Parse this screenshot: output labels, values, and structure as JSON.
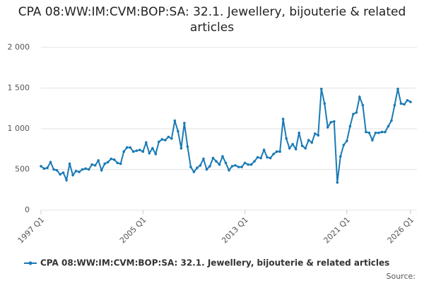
{
  "chart_data": {
    "type": "line",
    "title": "CPA 08:WW:IM:CVM:BOP:SA: 32.1. Jewellery, bijouterie & related articles",
    "categories": [
      "1997 Q1",
      null,
      null,
      null,
      null,
      null,
      null,
      null,
      null,
      null,
      null,
      null,
      null,
      null,
      null,
      null,
      null,
      null,
      null,
      null,
      null,
      null,
      null,
      null,
      null,
      null,
      null,
      null,
      null,
      null,
      null,
      null,
      "2005 Q1",
      null,
      null,
      null,
      null,
      null,
      null,
      null,
      null,
      null,
      null,
      null,
      null,
      null,
      null,
      null,
      null,
      null,
      null,
      null,
      null,
      null,
      null,
      null,
      null,
      null,
      null,
      null,
      null,
      null,
      null,
      null,
      "2013 Q1",
      null,
      null,
      null,
      null,
      null,
      null,
      null,
      null,
      null,
      null,
      null,
      null,
      null,
      null,
      null,
      null,
      null,
      null,
      null,
      null,
      null,
      null,
      null,
      null,
      null,
      null,
      null,
      null,
      null,
      null,
      null,
      "2021 Q1",
      null,
      null,
      null,
      null,
      null,
      null,
      null,
      null,
      null,
      null,
      null,
      null,
      null,
      null,
      null,
      null,
      null,
      null,
      null,
      "2026 Q1"
    ],
    "series": [
      {
        "name": "CPA 08:WW:IM:CVM:BOP:SA: 32.1. Jewellery, bijouterie & related articles",
        "color": "#1a7ab5",
        "values": [
          540,
          510,
          520,
          590,
          500,
          490,
          440,
          460,
          370,
          570,
          430,
          480,
          470,
          500,
          510,
          500,
          560,
          550,
          610,
          490,
          570,
          590,
          630,
          620,
          580,
          570,
          720,
          770,
          770,
          720,
          730,
          740,
          720,
          830,
          700,
          760,
          690,
          840,
          870,
          860,
          900,
          880,
          1100,
          970,
          760,
          1070,
          780,
          530,
          470,
          520,
          550,
          630,
          500,
          540,
          640,
          600,
          560,
          660,
          580,
          490,
          540,
          550,
          530,
          530,
          580,
          560,
          560,
          600,
          650,
          640,
          740,
          650,
          640,
          690,
          720,
          720,
          1120,
          880,
          760,
          810,
          750,
          950,
          790,
          760,
          860,
          830,
          940,
          920,
          1490,
          1310,
          1020,
          1080,
          1090,
          340,
          660,
          800,
          850,
          1030,
          1180,
          1200,
          1390,
          1290,
          960,
          950,
          860,
          950,
          950,
          960,
          960,
          1030,
          1100,
          1290,
          1490,
          1310,
          1300,
          1350,
          1330
        ]
      }
    ],
    "ylim": [
      0,
      2000
    ],
    "yticks": [
      0,
      {
        "value": 500,
        "label": "500"
      },
      {
        "value": 1000,
        "label": "1 000"
      },
      {
        "value": 1500,
        "label": "1 500"
      },
      {
        "value": 2000,
        "label": "2 000"
      }
    ],
    "grid": true,
    "source_label": "Source:"
  }
}
